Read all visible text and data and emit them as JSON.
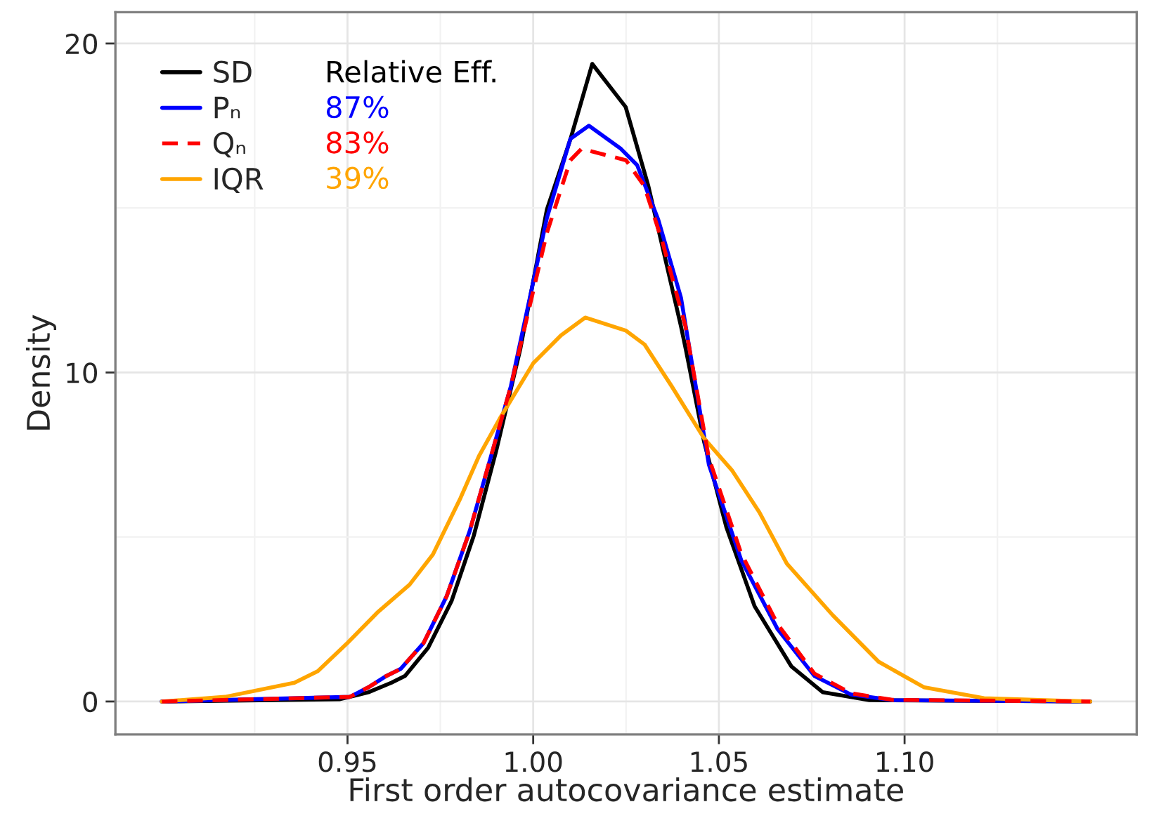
{
  "chart_data": {
    "type": "line",
    "xlabel": "First order autocovariance estimate",
    "ylabel": "Density",
    "xlim": [
      0.8875,
      1.1625
    ],
    "ylim": [
      -1,
      20.95
    ],
    "xticks": [
      {
        "value": 0.95,
        "label": "0.95"
      },
      {
        "value": 1.0,
        "label": "1.00"
      },
      {
        "value": 1.05,
        "label": "1.05"
      },
      {
        "value": 1.1,
        "label": "1.10"
      }
    ],
    "yticks": [
      0,
      10,
      20
    ],
    "grid": true,
    "legend": "top left",
    "marker": "none",
    "annotations": [
      "Relative Eff.",
      "87%",
      "83%",
      "39%"
    ],
    "series": [
      {
        "name": "SD",
        "color": "#000000",
        "line_style": "solid",
        "x": [
          0.9,
          0.948,
          0.9556,
          0.9618,
          0.9655,
          0.9717,
          0.978,
          0.984,
          0.99,
          0.9965,
          1.0037,
          1.01,
          1.0159,
          1.0249,
          1.031,
          1.0398,
          1.0411,
          1.046,
          1.052,
          1.0596,
          1.0695,
          1.078,
          1.0905,
          1.15
        ],
        "values": [
          0,
          0.07,
          0.28,
          0.57,
          0.78,
          1.63,
          3.05,
          5.04,
          7.6,
          10.7,
          14.96,
          17.08,
          19.38,
          18.07,
          15.67,
          11.4,
          10.7,
          7.9,
          5.3,
          2.9,
          1.07,
          0.28,
          0.04,
          0
        ]
      },
      {
        "name": "Pₙ",
        "color": "#0000ff",
        "line_style": "solid",
        "x": [
          0.9,
          0.9506,
          0.9556,
          0.9605,
          0.9643,
          0.9705,
          0.9767,
          0.9829,
          0.989,
          0.994,
          1.0037,
          1.01,
          1.015,
          1.0236,
          1.028,
          1.0336,
          1.0398,
          1.0473,
          1.056,
          1.0658,
          1.0757,
          1.0856,
          1.0967,
          1.15
        ],
        "values": [
          0,
          0.14,
          0.43,
          0.78,
          0.99,
          1.78,
          3.2,
          5.18,
          7.6,
          9.59,
          14.7,
          17.1,
          17.5,
          16.8,
          16.3,
          14.67,
          12.27,
          7.2,
          4.3,
          2.2,
          0.78,
          0.21,
          0.04,
          0
        ]
      },
      {
        "name": "Qₙ",
        "color": "#ff0000",
        "line_style": "dashed",
        "x": [
          0.9,
          0.9506,
          0.9556,
          0.9605,
          0.9643,
          0.9705,
          0.9767,
          0.9829,
          0.989,
          0.994,
          1.0037,
          1.01,
          1.013,
          1.0199,
          1.025,
          1.0299,
          1.0348,
          1.041,
          1.0473,
          1.056,
          1.0658,
          1.0757,
          1.0856,
          1.0967,
          1.15
        ],
        "values": [
          0,
          0.14,
          0.43,
          0.78,
          0.99,
          1.78,
          3.2,
          5.18,
          7.6,
          9.59,
          14.25,
          16.45,
          16.8,
          16.6,
          16.45,
          15.67,
          13.97,
          11.4,
          7.4,
          4.5,
          2.35,
          0.85,
          0.25,
          0.05,
          0
        ]
      },
      {
        "name": "IQR",
        "color": "#ffa500",
        "line_style": "solid",
        "x": [
          0.9,
          0.917,
          0.9357,
          0.942,
          0.95,
          0.958,
          0.9667,
          0.973,
          0.9804,
          0.9854,
          0.991,
          1.0,
          1.0075,
          1.014,
          1.025,
          1.03,
          1.0373,
          1.046,
          1.0535,
          1.0609,
          1.0683,
          1.0806,
          1.093,
          1.1053,
          1.1214,
          1.15
        ],
        "values": [
          0,
          0.14,
          0.57,
          0.92,
          1.78,
          2.7,
          3.55,
          4.47,
          6.18,
          7.46,
          8.6,
          10.28,
          11.13,
          11.67,
          11.27,
          10.85,
          9.58,
          8.0,
          7.03,
          5.75,
          4.19,
          2.63,
          1.21,
          0.43,
          0.1,
          0
        ]
      }
    ]
  }
}
